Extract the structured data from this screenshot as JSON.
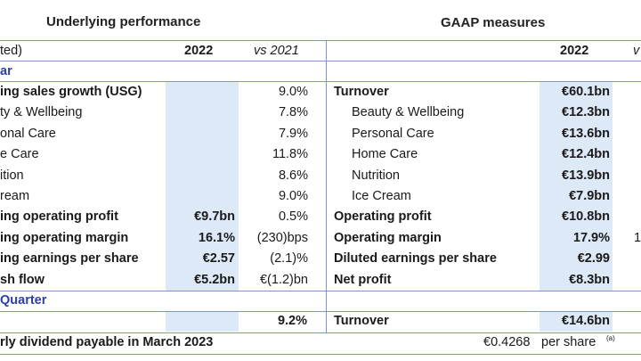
{
  "headers": {
    "left_title": "Underlying performance",
    "right_title": "GAAP measures",
    "left_subtitle": "ted)",
    "col_2022": "2022",
    "col_vs2021": "vs 2021",
    "right_col_2022": "2022",
    "right_col_vs_partial": "v"
  },
  "sections": {
    "year_label": "ar",
    "quarter_label": "Quarter"
  },
  "left_rows": [
    {
      "label": "ing sales growth (USG)",
      "v2022": "",
      "vs": "9.0%",
      "bold": true
    },
    {
      "label": "ty & Wellbeing",
      "v2022": "",
      "vs": "7.8%",
      "bold": false
    },
    {
      "label": "onal Care",
      "v2022": "",
      "vs": "7.9%",
      "bold": false
    },
    {
      "label": "e Care",
      "v2022": "",
      "vs": "11.8%",
      "bold": false
    },
    {
      "label": "ition",
      "v2022": "",
      "vs": "8.6%",
      "bold": false
    },
    {
      "label": "ream",
      "v2022": "",
      "vs": "9.0%",
      "bold": false
    },
    {
      "label": "ing operating profit",
      "v2022": "€9.7bn",
      "vs": "0.5%",
      "bold": true
    },
    {
      "label": "ing operating margin",
      "v2022": "16.1%",
      "vs": "(230)bps",
      "bold": true
    },
    {
      "label": "ing earnings per share",
      "v2022": "€2.57",
      "vs": "(2.1)%",
      "bold": true
    },
    {
      "label": "sh flow",
      "v2022": "€5.2bn",
      "vs": "€(1.2)bn",
      "bold": true
    }
  ],
  "right_rows": [
    {
      "label": "Turnover",
      "v2022": "€60.1bn",
      "extra": "",
      "bold": true,
      "indent": false
    },
    {
      "label": "Beauty & Wellbeing",
      "v2022": "€12.3bn",
      "extra": "",
      "bold": false,
      "indent": true
    },
    {
      "label": "Personal Care",
      "v2022": "€13.6bn",
      "extra": "",
      "bold": false,
      "indent": true
    },
    {
      "label": "Home Care",
      "v2022": "€12.4bn",
      "extra": "",
      "bold": false,
      "indent": true
    },
    {
      "label": "Nutrition",
      "v2022": "€13.9bn",
      "extra": "",
      "bold": false,
      "indent": true
    },
    {
      "label": "Ice Cream",
      "v2022": "€7.9bn",
      "extra": "",
      "bold": false,
      "indent": true
    },
    {
      "label": "Operating profit",
      "v2022": "€10.8bn",
      "extra": "",
      "bold": true,
      "indent": false
    },
    {
      "label": "Operating margin",
      "v2022": "17.9%",
      "extra": "1",
      "bold": true,
      "indent": false
    },
    {
      "label": "Diluted earnings per share",
      "v2022": "€2.99",
      "extra": "",
      "bold": true,
      "indent": false
    },
    {
      "label": "Net profit",
      "v2022": "€8.3bn",
      "extra": "",
      "bold": true,
      "indent": false
    }
  ],
  "quarter": {
    "left_vs": "9.2%",
    "right_label": "Turnover",
    "right_v2022": "€14.6bn"
  },
  "dividend": {
    "label": "rly dividend payable in March 2023",
    "value": "€0.4268",
    "unit": "per share",
    "note": "(a)"
  }
}
